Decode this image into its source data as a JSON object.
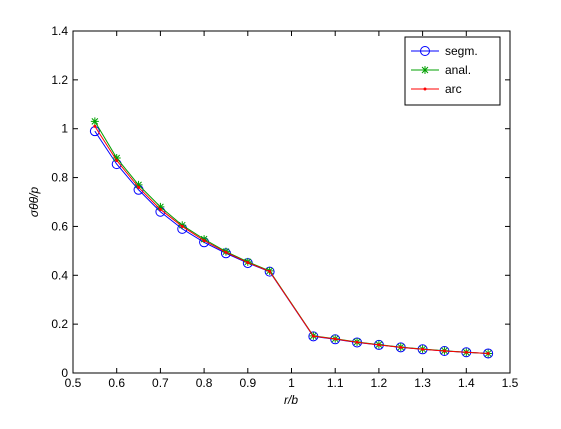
{
  "chart_data": {
    "type": "line",
    "xlabel": "r/b",
    "ylabel": "σθθ/p",
    "x": [
      0.55,
      0.6,
      0.65,
      0.7,
      0.75,
      0.8,
      0.85,
      0.9,
      0.95,
      1.05,
      1.1,
      1.15,
      1.2,
      1.25,
      1.3,
      1.35,
      1.4,
      1.45
    ],
    "series": [
      {
        "name": "segm.",
        "color": "#0000ff",
        "marker": "o",
        "values": [
          0.99,
          0.855,
          0.75,
          0.66,
          0.59,
          0.535,
          0.49,
          0.45,
          0.415,
          0.15,
          0.138,
          0.125,
          0.115,
          0.105,
          0.097,
          0.09,
          0.085,
          0.08
        ]
      },
      {
        "name": "anal.",
        "color": "#00a000",
        "marker": "*",
        "values": [
          1.03,
          0.88,
          0.77,
          0.68,
          0.605,
          0.548,
          0.497,
          0.455,
          0.418,
          0.152,
          0.14,
          0.127,
          0.116,
          0.106,
          0.098,
          0.091,
          0.085,
          0.08
        ]
      },
      {
        "name": "arc",
        "color": "#ff0000",
        "marker": ".",
        "values": [
          1.01,
          0.87,
          0.76,
          0.67,
          0.6,
          0.542,
          0.494,
          0.452,
          0.416,
          0.151,
          0.139,
          0.126,
          0.115,
          0.105,
          0.097,
          0.09,
          0.085,
          0.08
        ]
      }
    ],
    "xlim": [
      0.5,
      1.5
    ],
    "xticks": [
      0.5,
      0.6,
      0.7,
      0.8,
      0.9,
      1,
      1.1,
      1.2,
      1.3,
      1.4,
      1.5
    ],
    "ylim": [
      0,
      1.4
    ],
    "yticks": [
      0,
      0.2,
      0.4,
      0.6,
      0.8,
      1,
      1.2,
      1.4
    ],
    "grid": false,
    "legend": "top-right"
  }
}
